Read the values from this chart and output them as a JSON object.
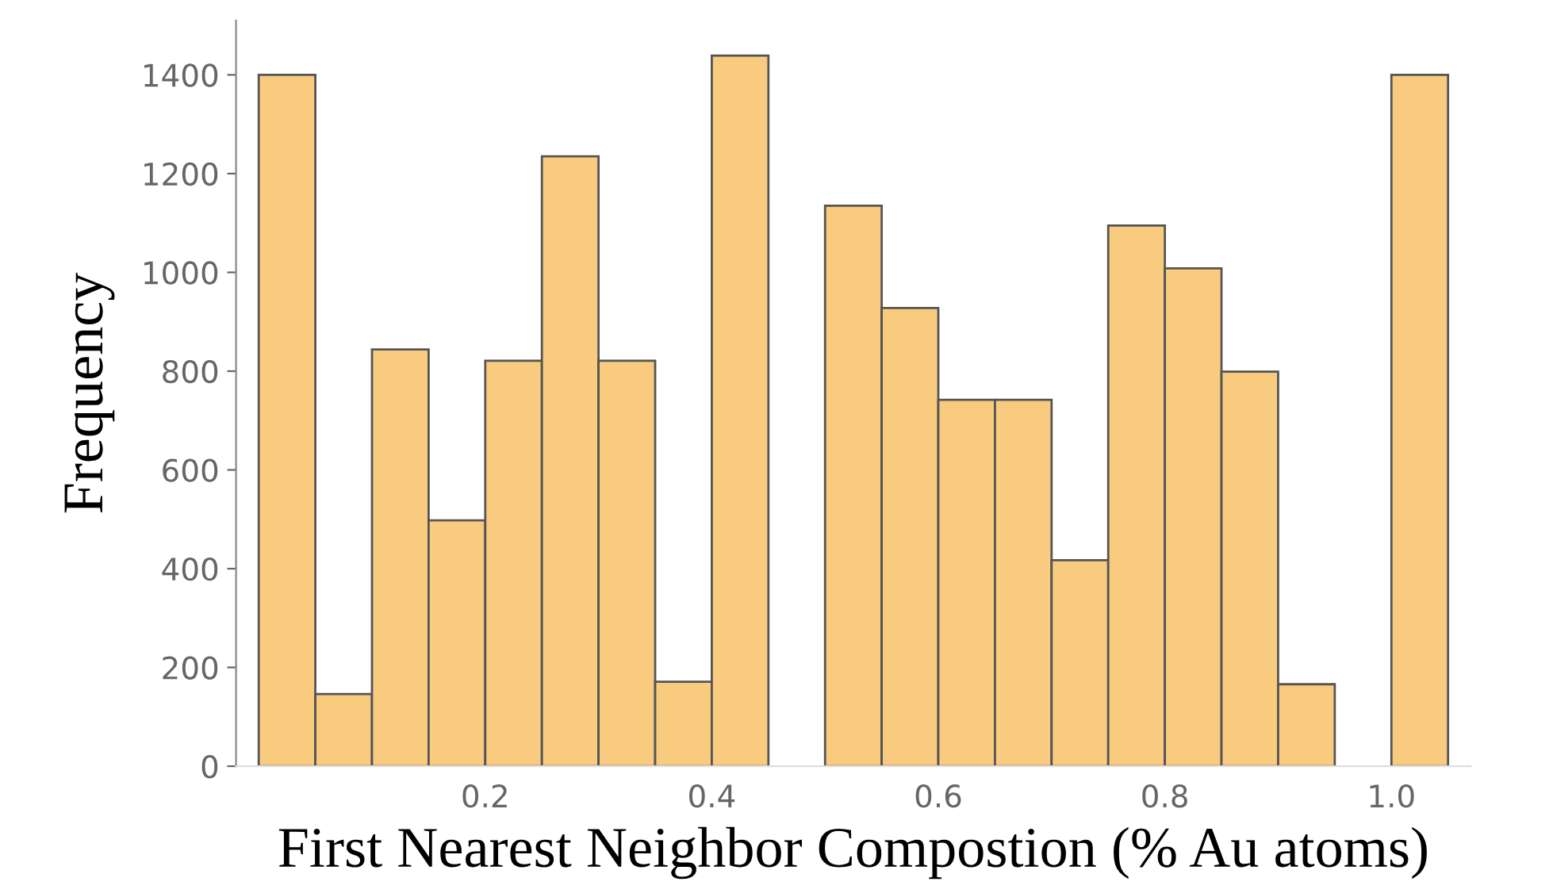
{
  "chart_data": {
    "type": "histogram",
    "xlabel": "First Nearest Neighbor Compostion (% Au atoms)",
    "ylabel": "Frequency",
    "bins": [
      0,
      0.05,
      0.1,
      0.15,
      0.2,
      0.25,
      0.3,
      0.35,
      0.4,
      0.45,
      0.5,
      0.55,
      0.6,
      0.65,
      0.7,
      0.75,
      0.8,
      0.85,
      0.9,
      0.95,
      1.0,
      1.05
    ],
    "values": [
      1400,
      146,
      844,
      498,
      821,
      1235,
      821,
      171,
      1439,
      0,
      1135,
      928,
      742,
      742,
      417,
      1095,
      1008,
      799,
      166,
      0,
      1400
    ],
    "color": "#f8cb7f",
    "xlim": [
      -0.02,
      1.07
    ],
    "xticks": [
      {
        "value": 0.2,
        "label": "0.2"
      },
      {
        "value": 0.4,
        "label": "0.4"
      },
      {
        "value": 0.6,
        "label": "0.6"
      },
      {
        "value": 0.8,
        "label": "0.8"
      },
      {
        "value": 1.0,
        "label": "1.0"
      }
    ],
    "ylim": [
      0,
      1510
    ],
    "yticks": [
      0,
      200,
      400,
      600,
      800,
      1000,
      1200,
      1400
    ],
    "grid": false,
    "legend": false
  }
}
